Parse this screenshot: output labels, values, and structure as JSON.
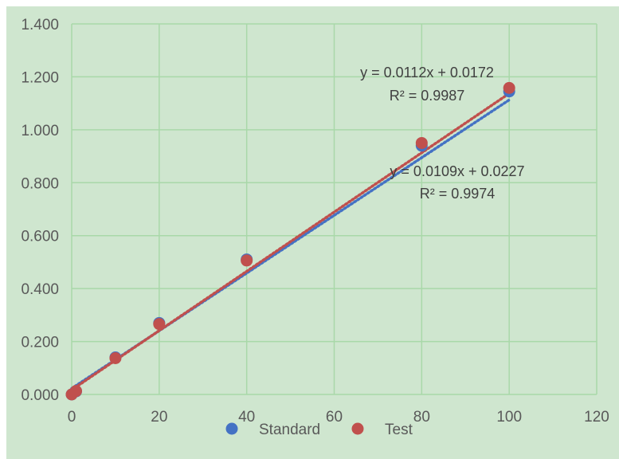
{
  "chart_data": {
    "type": "scatter",
    "xlim": [
      0,
      120
    ],
    "ylim": [
      0,
      1.4
    ],
    "x_ticks": [
      0,
      20,
      40,
      60,
      80,
      100,
      120
    ],
    "y_ticks": [
      "0.000",
      "0.200",
      "0.400",
      "0.600",
      "0.800",
      "1.000",
      "1.200",
      "1.400"
    ],
    "grid": true,
    "legend_position": "bottom",
    "series": [
      {
        "name": "Standard",
        "color": "#4472c4",
        "x": [
          0,
          1,
          10,
          20,
          40,
          80,
          100
        ],
        "y": [
          0.0,
          0.012,
          0.14,
          0.27,
          0.51,
          0.94,
          1.145
        ],
        "trendline": {
          "slope": 0.0109,
          "intercept": 0.0227,
          "equation": "y = 0.0109x + 0.0227",
          "r2": "R² = 0.9974"
        }
      },
      {
        "name": "Test",
        "color": "#c0504d",
        "x": [
          0,
          1,
          10,
          20,
          40,
          80,
          100
        ],
        "y": [
          0.0,
          0.013,
          0.137,
          0.266,
          0.506,
          0.95,
          1.158
        ],
        "trendline": {
          "slope": 0.0112,
          "intercept": 0.0172,
          "equation": "y = 0.0112x + 0.0172",
          "r2": "R² = 0.9987"
        }
      }
    ]
  }
}
